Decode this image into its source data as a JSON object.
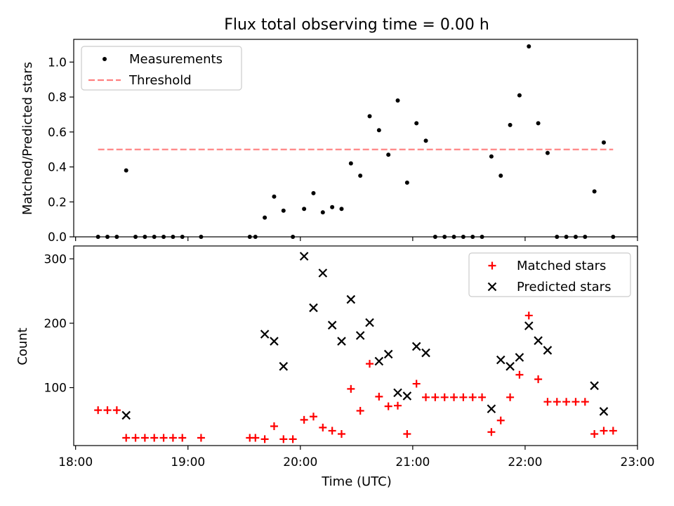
{
  "chart_data": [
    {
      "type": "scatter",
      "title": "Flux total observing time = 0.00 h",
      "xlabel": "",
      "ylabel": "Matched/Predicted stars",
      "xlim": [
        "17:59",
        "23:00"
      ],
      "ylim": [
        0,
        1.13
      ],
      "yticks": [
        0,
        0.2,
        0.4,
        0.6,
        0.8,
        1.0
      ],
      "yticklabels": [
        "0.0",
        "0.2",
        "0.4",
        "0.6",
        "0.8",
        "1.0"
      ],
      "xticks": [
        "18:00",
        "19:00",
        "20:00",
        "21:00",
        "22:00",
        "23:00"
      ],
      "legend": {
        "placement": "upper-left",
        "entries": [
          "Measurements",
          "Threshold"
        ]
      },
      "series": [
        {
          "name": "Measurements",
          "color": "#000000",
          "marker": "dot",
          "points": [
            [
              "18:12",
              0
            ],
            [
              "18:17",
              0
            ],
            [
              "18:22",
              0
            ],
            [
              "18:27",
              0.38
            ],
            [
              "18:32",
              0
            ],
            [
              "18:37",
              0
            ],
            [
              "18:42",
              0
            ],
            [
              "18:47",
              0
            ],
            [
              "18:52",
              0
            ],
            [
              "18:57",
              0
            ],
            [
              "19:07",
              0
            ],
            [
              "19:33",
              0
            ],
            [
              "19:36",
              0
            ],
            [
              "19:41",
              0.11
            ],
            [
              "19:46",
              0.23
            ],
            [
              "19:51",
              0.15
            ],
            [
              "19:56",
              0
            ],
            [
              "20:02",
              0.16
            ],
            [
              "20:07",
              0.25
            ],
            [
              "20:12",
              0.14
            ],
            [
              "20:17",
              0.17
            ],
            [
              "20:22",
              0.16
            ],
            [
              "20:27",
              0.42
            ],
            [
              "20:32",
              0.35
            ],
            [
              "20:37",
              0.69
            ],
            [
              "20:42",
              0.61
            ],
            [
              "20:47",
              0.47
            ],
            [
              "20:52",
              0.78
            ],
            [
              "20:57",
              0.31
            ],
            [
              "21:02",
              0.65
            ],
            [
              "21:07",
              0.55
            ],
            [
              "21:12",
              0
            ],
            [
              "21:17",
              0
            ],
            [
              "21:22",
              0
            ],
            [
              "21:27",
              0
            ],
            [
              "21:32",
              0
            ],
            [
              "21:37",
              0
            ],
            [
              "21:42",
              0.46
            ],
            [
              "21:47",
              0.35
            ],
            [
              "21:52",
              0.64
            ],
            [
              "21:57",
              0.81
            ],
            [
              "22:02",
              1.09
            ],
            [
              "22:07",
              0.65
            ],
            [
              "22:12",
              0.48
            ],
            [
              "22:17",
              0
            ],
            [
              "22:22",
              0
            ],
            [
              "22:27",
              0
            ],
            [
              "22:32",
              0
            ],
            [
              "22:37",
              0.26
            ],
            [
              "22:42",
              0.54
            ],
            [
              "22:47",
              0
            ]
          ]
        },
        {
          "name": "Threshold",
          "color": "#ff7f7f",
          "style": "dashed",
          "points": [
            [
              "18:12",
              0.5
            ],
            [
              "22:47",
              0.5
            ]
          ]
        }
      ]
    },
    {
      "type": "scatter",
      "title": "",
      "xlabel": "Time (UTC)",
      "ylabel": "Count",
      "xlim": [
        "17:59",
        "23:00"
      ],
      "ylim": [
        10,
        320
      ],
      "yticks": [
        100,
        200,
        300
      ],
      "yticklabels": [
        "100",
        "200",
        "300"
      ],
      "xticks": [
        "18:00",
        "19:00",
        "20:00",
        "21:00",
        "22:00",
        "23:00"
      ],
      "legend": {
        "placement": "upper-right",
        "entries": [
          "Matched stars",
          "Predicted stars"
        ]
      },
      "series": [
        {
          "name": "Matched stars",
          "color": "#ff0000",
          "marker": "plus",
          "points": [
            [
              "18:12",
              65
            ],
            [
              "18:17",
              65
            ],
            [
              "18:22",
              65
            ],
            [
              "18:27",
              22
            ],
            [
              "18:32",
              22
            ],
            [
              "18:37",
              22
            ],
            [
              "18:42",
              22
            ],
            [
              "18:47",
              22
            ],
            [
              "18:52",
              22
            ],
            [
              "18:57",
              22
            ],
            [
              "19:07",
              22
            ],
            [
              "19:33",
              22
            ],
            [
              "19:36",
              22
            ],
            [
              "19:41",
              20
            ],
            [
              "19:46",
              40
            ],
            [
              "19:51",
              20
            ],
            [
              "19:56",
              20
            ],
            [
              "20:02",
              50
            ],
            [
              "20:07",
              55
            ],
            [
              "20:12",
              38
            ],
            [
              "20:17",
              33
            ],
            [
              "20:22",
              28
            ],
            [
              "20:27",
              98
            ],
            [
              "20:32",
              64
            ],
            [
              "20:37",
              137
            ],
            [
              "20:42",
              86
            ],
            [
              "20:47",
              71
            ],
            [
              "20:52",
              72
            ],
            [
              "20:57",
              28
            ],
            [
              "21:02",
              106
            ],
            [
              "21:07",
              85
            ],
            [
              "21:12",
              85
            ],
            [
              "21:17",
              85
            ],
            [
              "21:22",
              85
            ],
            [
              "21:27",
              85
            ],
            [
              "21:32",
              85
            ],
            [
              "21:37",
              85
            ],
            [
              "21:42",
              31
            ],
            [
              "21:47",
              49
            ],
            [
              "21:52",
              85
            ],
            [
              "21:57",
              120
            ],
            [
              "22:02",
              212
            ],
            [
              "22:07",
              113
            ],
            [
              "22:12",
              78
            ],
            [
              "22:17",
              78
            ],
            [
              "22:22",
              78
            ],
            [
              "22:27",
              78
            ],
            [
              "22:32",
              78
            ],
            [
              "22:37",
              28
            ],
            [
              "22:42",
              33
            ],
            [
              "22:47",
              33
            ]
          ]
        },
        {
          "name": "Predicted stars",
          "color": "#000000",
          "marker": "x",
          "points": [
            [
              "18:27",
              57
            ],
            [
              "19:41",
              183
            ],
            [
              "19:46",
              172
            ],
            [
              "19:51",
              133
            ],
            [
              "20:02",
              304
            ],
            [
              "20:07",
              224
            ],
            [
              "20:12",
              278
            ],
            [
              "20:17",
              197
            ],
            [
              "20:22",
              172
            ],
            [
              "20:27",
              237
            ],
            [
              "20:32",
              181
            ],
            [
              "20:37",
              201
            ],
            [
              "20:42",
              141
            ],
            [
              "20:47",
              152
            ],
            [
              "20:52",
              92
            ],
            [
              "20:57",
              87
            ],
            [
              "21:02",
              164
            ],
            [
              "21:07",
              154
            ],
            [
              "21:42",
              67
            ],
            [
              "21:47",
              143
            ],
            [
              "21:52",
              133
            ],
            [
              "21:57",
              147
            ],
            [
              "22:02",
              196
            ],
            [
              "22:07",
              173
            ],
            [
              "22:12",
              158
            ],
            [
              "22:37",
              103
            ],
            [
              "22:42",
              63
            ]
          ]
        }
      ]
    }
  ]
}
